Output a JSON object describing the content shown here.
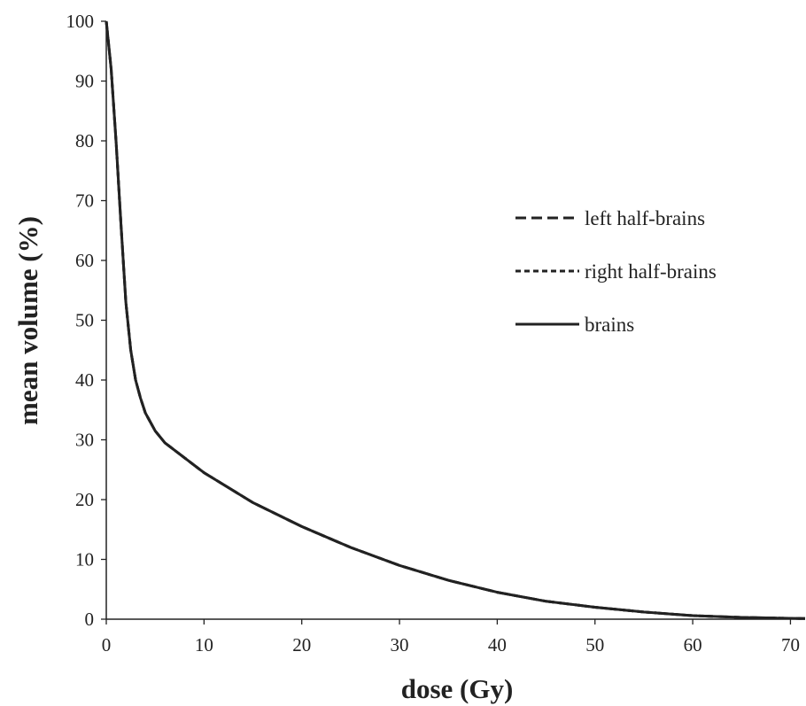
{
  "chart_data": {
    "type": "line",
    "title": "",
    "xlabel": "dose (Gy)",
    "ylabel": "mean volume (%)",
    "xlim": [
      0,
      71.5
    ],
    "ylim": [
      0,
      100
    ],
    "xticks": [
      "0",
      "10",
      "20",
      "30",
      "40",
      "50",
      "60",
      "70"
    ],
    "yticks": [
      "0",
      "10",
      "20",
      "30",
      "40",
      "50",
      "60",
      "70",
      "80",
      "90",
      "100"
    ],
    "grid": false,
    "legend_position": "right",
    "series": [
      {
        "name": "left half-brains",
        "style": "long-dash",
        "x": [
          0,
          0.5,
          1,
          1.5,
          2,
          2.5,
          3,
          3.5,
          4,
          5,
          6,
          8,
          10,
          12,
          15,
          20,
          25,
          30,
          35,
          40,
          45,
          50,
          55,
          60,
          65,
          70,
          71.5
        ],
        "y": [
          100,
          92,
          80,
          66,
          53,
          45,
          40,
          37,
          34.5,
          31.5,
          29.5,
          27,
          24.5,
          22.5,
          19.5,
          15.5,
          12,
          9,
          6.5,
          4.5,
          3,
          2,
          1.2,
          0.6,
          0.3,
          0.15,
          0.1
        ]
      },
      {
        "name": "right half-brains",
        "style": "short-dash",
        "x": [
          0,
          0.5,
          1,
          1.5,
          2,
          2.5,
          3,
          3.5,
          4,
          5,
          6,
          8,
          10,
          12,
          15,
          20,
          25,
          30,
          35,
          40,
          45,
          50,
          55,
          60,
          65,
          70,
          71.5
        ],
        "y": [
          100,
          92,
          80,
          66,
          53,
          45,
          40,
          37,
          34.5,
          31.5,
          29.5,
          27,
          24.5,
          22.5,
          19.5,
          15.5,
          12,
          9,
          6.5,
          4.5,
          3,
          2,
          1.2,
          0.6,
          0.3,
          0.15,
          0.1
        ]
      },
      {
        "name": "brains",
        "style": "solid",
        "x": [
          0,
          0.5,
          1,
          1.5,
          2,
          2.5,
          3,
          3.5,
          4,
          5,
          6,
          8,
          10,
          12,
          15,
          20,
          25,
          30,
          35,
          40,
          45,
          50,
          55,
          60,
          65,
          70,
          71.5
        ],
        "y": [
          100,
          92,
          80,
          66,
          53,
          45,
          40,
          37,
          34.5,
          31.5,
          29.5,
          27,
          24.5,
          22.5,
          19.5,
          15.5,
          12,
          9,
          6.5,
          4.5,
          3,
          2,
          1.2,
          0.6,
          0.3,
          0.15,
          0.1
        ]
      }
    ],
    "colors": {
      "line": "#222222",
      "axis": "#222222"
    }
  }
}
